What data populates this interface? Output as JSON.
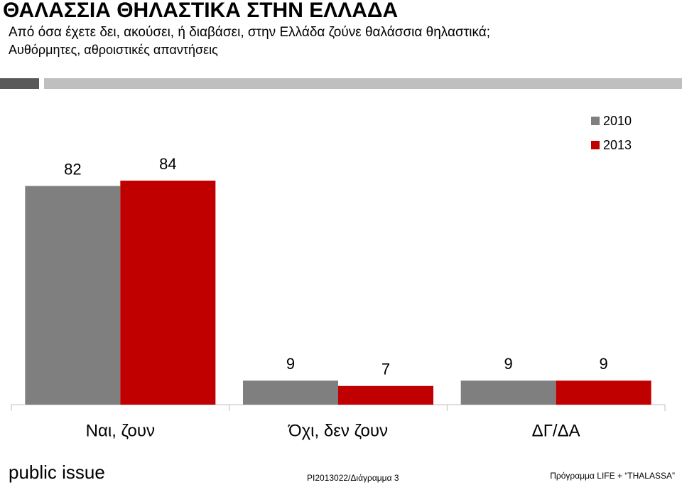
{
  "title": "ΘΑΛΑΣΣΙΑ ΘΗΛΑΣΤΙΚΑ ΣΤΗΝ ΕΛΛΑΔΑ",
  "subtitle": "Από όσα έχετε δει, ακούσει, ή διαβάσει, στην Ελλάδα ζούνε θαλάσσια θηλαστικά;",
  "note": "Αυθόρμητες, αθροιστικές απαντήσεις",
  "chart_data": {
    "type": "bar",
    "categories": [
      "Ναι, ζουν",
      "Όχι, δεν ζουν",
      "ΔΓ/ΔΑ"
    ],
    "series": [
      {
        "name": "2010",
        "color": "#7f7f7f",
        "values": [
          82,
          9,
          9
        ]
      },
      {
        "name": "2013",
        "color": "#c00000",
        "values": [
          84,
          7,
          9
        ]
      }
    ],
    "legend": "top-right"
  },
  "footer": {
    "brand": "public issue",
    "code": "PI2013022/Διάγραμμα 3",
    "program": "Πρόγραμμα LIFE + “THALASSA”"
  }
}
